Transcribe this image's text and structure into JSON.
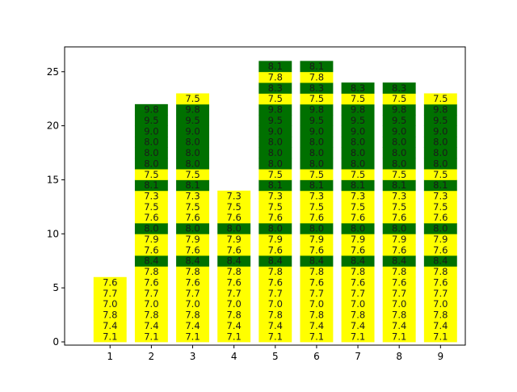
{
  "chart_data": {
    "type": "bar",
    "stacked": true,
    "categories": [
      "1",
      "2",
      "3",
      "4",
      "5",
      "6",
      "7",
      "8",
      "9"
    ],
    "segment_height": 1,
    "ylim": [
      -0.3,
      27.3
    ],
    "yticks": [
      0,
      5,
      10,
      15,
      20,
      25
    ],
    "grid": false,
    "colors": {
      "yellow": "#ffff00",
      "green": "#007000"
    },
    "stacks": [
      [
        [
          "7.1",
          "yellow"
        ],
        [
          "7.4",
          "yellow"
        ],
        [
          "7.8",
          "yellow"
        ],
        [
          "7.0",
          "yellow"
        ],
        [
          "7.7",
          "yellow"
        ],
        [
          "7.6",
          "yellow"
        ]
      ],
      [
        [
          "7.1",
          "yellow"
        ],
        [
          "7.4",
          "yellow"
        ],
        [
          "7.8",
          "yellow"
        ],
        [
          "7.0",
          "yellow"
        ],
        [
          "7.7",
          "yellow"
        ],
        [
          "7.6",
          "yellow"
        ],
        [
          "7.8",
          "yellow"
        ],
        [
          "8.4",
          "green"
        ],
        [
          "7.6",
          "yellow"
        ],
        [
          "7.9",
          "yellow"
        ],
        [
          "8.0",
          "green"
        ],
        [
          "7.6",
          "yellow"
        ],
        [
          "7.5",
          "yellow"
        ],
        [
          "7.3",
          "yellow"
        ],
        [
          "8.1",
          "green"
        ],
        [
          "7.5",
          "yellow"
        ],
        [
          "8.0",
          "green"
        ],
        [
          "8.0",
          "green"
        ],
        [
          "8.0",
          "green"
        ],
        [
          "9.0",
          "green"
        ],
        [
          "9.5",
          "green"
        ],
        [
          "9.8",
          "green"
        ]
      ],
      [
        [
          "7.1",
          "yellow"
        ],
        [
          "7.4",
          "yellow"
        ],
        [
          "7.8",
          "yellow"
        ],
        [
          "7.0",
          "yellow"
        ],
        [
          "7.7",
          "yellow"
        ],
        [
          "7.6",
          "yellow"
        ],
        [
          "7.8",
          "yellow"
        ],
        [
          "8.4",
          "green"
        ],
        [
          "7.6",
          "yellow"
        ],
        [
          "7.9",
          "yellow"
        ],
        [
          "8.0",
          "green"
        ],
        [
          "7.6",
          "yellow"
        ],
        [
          "7.5",
          "yellow"
        ],
        [
          "7.3",
          "yellow"
        ],
        [
          "8.1",
          "green"
        ],
        [
          "7.5",
          "yellow"
        ],
        [
          "8.0",
          "green"
        ],
        [
          "8.0",
          "green"
        ],
        [
          "8.0",
          "green"
        ],
        [
          "9.0",
          "green"
        ],
        [
          "9.5",
          "green"
        ],
        [
          "9.8",
          "green"
        ],
        [
          "7.5",
          "yellow"
        ]
      ],
      [
        [
          "7.1",
          "yellow"
        ],
        [
          "7.4",
          "yellow"
        ],
        [
          "7.8",
          "yellow"
        ],
        [
          "7.0",
          "yellow"
        ],
        [
          "7.7",
          "yellow"
        ],
        [
          "7.6",
          "yellow"
        ],
        [
          "7.8",
          "yellow"
        ],
        [
          "8.4",
          "green"
        ],
        [
          "7.6",
          "yellow"
        ],
        [
          "7.9",
          "yellow"
        ],
        [
          "8.0",
          "green"
        ],
        [
          "7.6",
          "yellow"
        ],
        [
          "7.5",
          "yellow"
        ],
        [
          "7.3",
          "yellow"
        ]
      ],
      [
        [
          "7.1",
          "yellow"
        ],
        [
          "7.4",
          "yellow"
        ],
        [
          "7.8",
          "yellow"
        ],
        [
          "7.0",
          "yellow"
        ],
        [
          "7.7",
          "yellow"
        ],
        [
          "7.6",
          "yellow"
        ],
        [
          "7.8",
          "yellow"
        ],
        [
          "8.4",
          "green"
        ],
        [
          "7.6",
          "yellow"
        ],
        [
          "7.9",
          "yellow"
        ],
        [
          "8.0",
          "green"
        ],
        [
          "7.6",
          "yellow"
        ],
        [
          "7.5",
          "yellow"
        ],
        [
          "7.3",
          "yellow"
        ],
        [
          "8.1",
          "green"
        ],
        [
          "7.5",
          "yellow"
        ],
        [
          "8.0",
          "green"
        ],
        [
          "8.0",
          "green"
        ],
        [
          "8.0",
          "green"
        ],
        [
          "9.0",
          "green"
        ],
        [
          "9.5",
          "green"
        ],
        [
          "9.8",
          "green"
        ],
        [
          "7.5",
          "yellow"
        ],
        [
          "8.3",
          "green"
        ],
        [
          "7.8",
          "yellow"
        ],
        [
          "8.1",
          "green"
        ]
      ],
      [
        [
          "7.1",
          "yellow"
        ],
        [
          "7.4",
          "yellow"
        ],
        [
          "7.8",
          "yellow"
        ],
        [
          "7.0",
          "yellow"
        ],
        [
          "7.7",
          "yellow"
        ],
        [
          "7.6",
          "yellow"
        ],
        [
          "7.8",
          "yellow"
        ],
        [
          "8.4",
          "green"
        ],
        [
          "7.6",
          "yellow"
        ],
        [
          "7.9",
          "yellow"
        ],
        [
          "8.0",
          "green"
        ],
        [
          "7.6",
          "yellow"
        ],
        [
          "7.5",
          "yellow"
        ],
        [
          "7.3",
          "yellow"
        ],
        [
          "8.1",
          "green"
        ],
        [
          "7.5",
          "yellow"
        ],
        [
          "8.0",
          "green"
        ],
        [
          "8.0",
          "green"
        ],
        [
          "8.0",
          "green"
        ],
        [
          "9.0",
          "green"
        ],
        [
          "9.5",
          "green"
        ],
        [
          "9.8",
          "green"
        ],
        [
          "7.5",
          "yellow"
        ],
        [
          "8.3",
          "green"
        ],
        [
          "7.8",
          "yellow"
        ],
        [
          "8.1",
          "green"
        ]
      ],
      [
        [
          "7.1",
          "yellow"
        ],
        [
          "7.4",
          "yellow"
        ],
        [
          "7.8",
          "yellow"
        ],
        [
          "7.0",
          "yellow"
        ],
        [
          "7.7",
          "yellow"
        ],
        [
          "7.6",
          "yellow"
        ],
        [
          "7.8",
          "yellow"
        ],
        [
          "8.4",
          "green"
        ],
        [
          "7.6",
          "yellow"
        ],
        [
          "7.9",
          "yellow"
        ],
        [
          "8.0",
          "green"
        ],
        [
          "7.6",
          "yellow"
        ],
        [
          "7.5",
          "yellow"
        ],
        [
          "7.3",
          "yellow"
        ],
        [
          "8.1",
          "green"
        ],
        [
          "7.5",
          "yellow"
        ],
        [
          "8.0",
          "green"
        ],
        [
          "8.0",
          "green"
        ],
        [
          "8.0",
          "green"
        ],
        [
          "9.0",
          "green"
        ],
        [
          "9.5",
          "green"
        ],
        [
          "9.8",
          "green"
        ],
        [
          "7.5",
          "yellow"
        ],
        [
          "8.3",
          "green"
        ]
      ],
      [
        [
          "7.1",
          "yellow"
        ],
        [
          "7.4",
          "yellow"
        ],
        [
          "7.8",
          "yellow"
        ],
        [
          "7.0",
          "yellow"
        ],
        [
          "7.7",
          "yellow"
        ],
        [
          "7.6",
          "yellow"
        ],
        [
          "7.8",
          "yellow"
        ],
        [
          "8.4",
          "green"
        ],
        [
          "7.6",
          "yellow"
        ],
        [
          "7.9",
          "yellow"
        ],
        [
          "8.0",
          "green"
        ],
        [
          "7.6",
          "yellow"
        ],
        [
          "7.5",
          "yellow"
        ],
        [
          "7.3",
          "yellow"
        ],
        [
          "8.1",
          "green"
        ],
        [
          "7.5",
          "yellow"
        ],
        [
          "8.0",
          "green"
        ],
        [
          "8.0",
          "green"
        ],
        [
          "8.0",
          "green"
        ],
        [
          "9.0",
          "green"
        ],
        [
          "9.5",
          "green"
        ],
        [
          "9.8",
          "green"
        ],
        [
          "7.5",
          "yellow"
        ],
        [
          "8.3",
          "green"
        ]
      ],
      [
        [
          "7.1",
          "yellow"
        ],
        [
          "7.4",
          "yellow"
        ],
        [
          "7.8",
          "yellow"
        ],
        [
          "7.0",
          "yellow"
        ],
        [
          "7.7",
          "yellow"
        ],
        [
          "7.6",
          "yellow"
        ],
        [
          "7.8",
          "yellow"
        ],
        [
          "8.4",
          "green"
        ],
        [
          "7.6",
          "yellow"
        ],
        [
          "7.9",
          "yellow"
        ],
        [
          "8.0",
          "green"
        ],
        [
          "7.6",
          "yellow"
        ],
        [
          "7.5",
          "yellow"
        ],
        [
          "7.3",
          "yellow"
        ],
        [
          "8.1",
          "green"
        ],
        [
          "7.5",
          "yellow"
        ],
        [
          "8.0",
          "green"
        ],
        [
          "8.0",
          "green"
        ],
        [
          "8.0",
          "green"
        ],
        [
          "9.0",
          "green"
        ],
        [
          "9.5",
          "green"
        ],
        [
          "9.8",
          "green"
        ],
        [
          "7.5",
          "yellow"
        ]
      ]
    ]
  }
}
